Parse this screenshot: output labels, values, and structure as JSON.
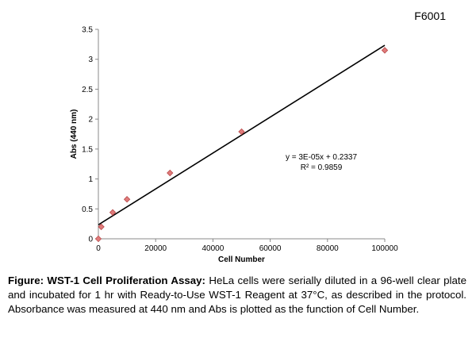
{
  "product_code": "F6001",
  "chart_data": {
    "type": "scatter",
    "xlabel": "Cell Number",
    "ylabel": "Abs (440 nm)",
    "xlim": [
      0,
      100000
    ],
    "ylim": [
      0,
      3.5
    ],
    "x_ticks": [
      0,
      20000,
      40000,
      60000,
      80000,
      100000
    ],
    "y_ticks": [
      0,
      0.5,
      1,
      1.5,
      2,
      2.5,
      3,
      3.5
    ],
    "x_tick_labels": [
      "0",
      "20000",
      "40000",
      "60000",
      "80000",
      "100000"
    ],
    "y_tick_labels": [
      "0",
      "0.5",
      "1",
      "1.5",
      "2",
      "2.5",
      "3",
      "3.5"
    ],
    "grid": false,
    "points": [
      {
        "x": 0,
        "y": 0.0
      },
      {
        "x": 1000,
        "y": 0.2
      },
      {
        "x": 5000,
        "y": 0.44
      },
      {
        "x": 10000,
        "y": 0.66
      },
      {
        "x": 25000,
        "y": 1.1
      },
      {
        "x": 50000,
        "y": 1.79
      },
      {
        "x": 100000,
        "y": 3.15
      }
    ],
    "trendline": {
      "slope": 3e-05,
      "intercept": 0.2337
    },
    "equation_label": "y = 3E-05x + 0.2337",
    "r2_label": "R² = 0.9859",
    "marker_color": "#e07b7b",
    "marker_edge_color": "#b84a4a",
    "line_color": "#000000"
  },
  "caption": {
    "bold_part": "Figure: WST-1 Cell Proliferation Assay:",
    "text_part": " HeLa cells were serially diluted in a 96-well clear plate and incubated for 1 hr with Ready-to-Use WST-1 Reagent at 37°C, as described in the protocol. Absorbance was measured at 440 nm and Abs is plotted as the function of Cell Number."
  }
}
